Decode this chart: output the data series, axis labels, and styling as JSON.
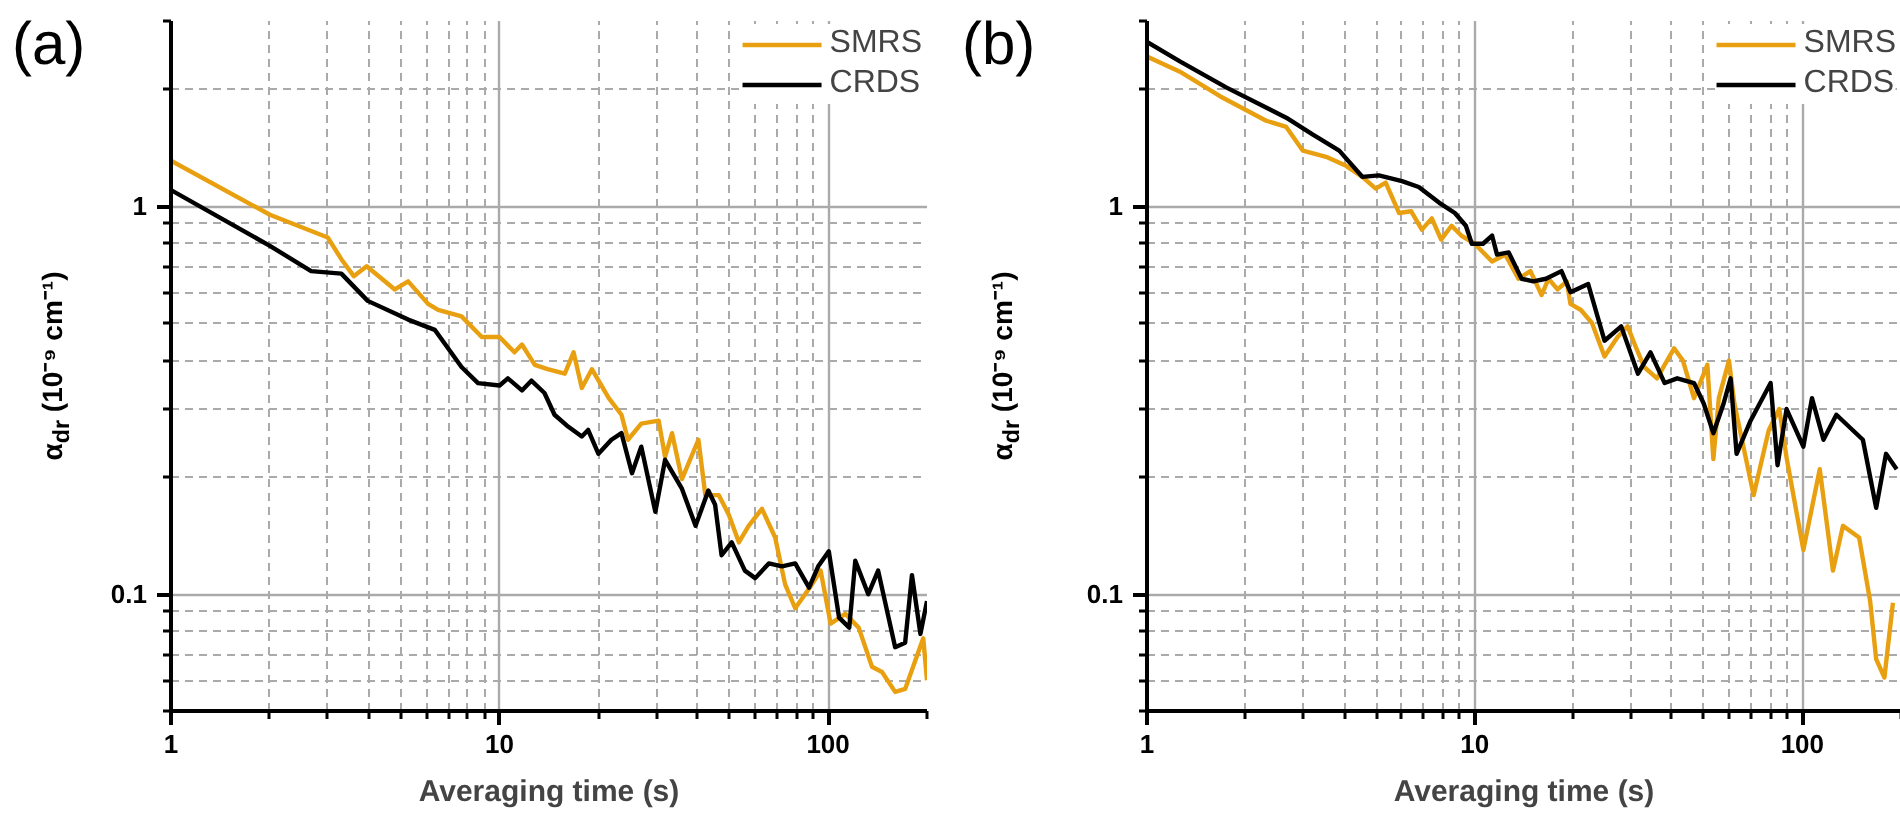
{
  "chart_data": [
    {
      "type": "line",
      "title": "(a)",
      "xlabel": "Averaging time (s)",
      "ylabel": "α$_{dr}$ (10⁻⁹ cm⁻¹)",
      "log": "xy",
      "grid": true,
      "legend": "top right",
      "xlim": [
        1,
        200
      ],
      "ylim": [
        0.05,
        3
      ],
      "xticks": [
        1,
        10,
        100
      ],
      "yticks": [
        0.1,
        1
      ],
      "series": [
        {
          "name": "SMRS",
          "color": "#e9a010",
          "x": [
            1,
            2,
            3,
            3.3,
            3.6,
            3.94,
            4.8,
            5.27,
            6.06,
            6.5,
            7.66,
            8.83,
            10,
            11.1,
            11.7,
            12.8,
            14,
            15.8,
            16.8,
            17.8,
            19.1,
            21.5,
            23.5,
            24.6,
            27,
            30.5,
            31.9,
            33.5,
            35.9,
            40.3,
            42.3,
            46.5,
            49.9,
            53.5,
            57.3,
            62.9,
            69,
            74,
            79.4,
            85.1,
            89.3,
            94.9,
            101.8,
            112.8,
            123.9,
            136,
            145.9,
            160,
            171.6,
            194.8,
            200
          ],
          "values": [
            1.31,
            0.95,
            0.83,
            0.73,
            0.66,
            0.7,
            0.61,
            0.64,
            0.56,
            0.54,
            0.52,
            0.46,
            0.46,
            0.42,
            0.44,
            0.39,
            0.38,
            0.37,
            0.42,
            0.34,
            0.38,
            0.32,
            0.29,
            0.25,
            0.275,
            0.28,
            0.226,
            0.26,
            0.198,
            0.25,
            0.18,
            0.18,
            0.16,
            0.136,
            0.15,
            0.166,
            0.14,
            0.106,
            0.092,
            0.1,
            0.106,
            0.115,
            0.084,
            0.089,
            0.082,
            0.065,
            0.063,
            0.056,
            0.057,
            0.077,
            0.06
          ]
        },
        {
          "name": "CRDS",
          "color": "#000000",
          "x": [
            1,
            2,
            2.67,
            3.3,
            3.97,
            5.27,
            6.35,
            7.66,
            8.6,
            10,
            10.6,
            11.7,
            12.5,
            13.7,
            14.7,
            16.2,
            17.8,
            18.6,
            20,
            21.9,
            23.5,
            25.3,
            27,
            29.8,
            31.9,
            35.9,
            39.5,
            43.2,
            45.3,
            47.4,
            50.9,
            55.8,
            60,
            66,
            72.4,
            79.4,
            87.5,
            93.3,
            100.5,
            108,
            116,
            121,
            132.5,
            142,
            160,
            171.6,
            180,
            191,
            200
          ],
          "values": [
            1.1,
            0.79,
            0.68,
            0.67,
            0.57,
            0.51,
            0.48,
            0.385,
            0.35,
            0.345,
            0.36,
            0.335,
            0.355,
            0.33,
            0.29,
            0.27,
            0.255,
            0.265,
            0.23,
            0.25,
            0.26,
            0.205,
            0.24,
            0.163,
            0.222,
            0.187,
            0.15,
            0.185,
            0.17,
            0.126,
            0.136,
            0.115,
            0.11,
            0.12,
            0.118,
            0.12,
            0.104,
            0.118,
            0.129,
            0.087,
            0.082,
            0.122,
            0.1,
            0.115,
            0.073,
            0.075,
            0.112,
            0.079,
            0.096
          ]
        }
      ]
    },
    {
      "type": "line",
      "title": "(b)",
      "xlabel": "Averaging time (s)",
      "ylabel": "α$_{dr}$ (10⁻⁹ cm⁻¹)",
      "log": "xy",
      "grid": true,
      "legend": "top right",
      "xlim": [
        1,
        200
      ],
      "ylim": [
        0.05,
        3
      ],
      "xticks": [
        1,
        10,
        100
      ],
      "yticks": [
        0.1,
        1
      ],
      "series": [
        {
          "name": "SMRS",
          "color": "#e9a010",
          "x": [
            1,
            1.26,
            1.67,
            2.31,
            2.66,
            2.99,
            3.52,
            4.05,
            4.54,
            4.99,
            5.35,
            5.88,
            6.4,
            6.9,
            7.4,
            7.9,
            8.5,
            9.1,
            10,
            11.3,
            12.4,
            13.6,
            14.8,
            16,
            16.8,
            17.9,
            19.1,
            19.6,
            21.1,
            22.8,
            24.9,
            27.3,
            29.3,
            30.8,
            32.9,
            36,
            40.6,
            43.2,
            46.7,
            51.3,
            53.5,
            55.6,
            59.7,
            62,
            71,
            79,
            85,
            89.5,
            100.7,
            113,
            124,
            133,
            149,
            161,
            168,
            178,
            189
          ],
          "values": [
            2.43,
            2.22,
            1.92,
            1.66,
            1.6,
            1.39,
            1.34,
            1.27,
            1.19,
            1.11,
            1.15,
            0.96,
            0.97,
            0.87,
            0.93,
            0.82,
            0.89,
            0.84,
            0.8,
            0.72,
            0.75,
            0.65,
            0.68,
            0.59,
            0.65,
            0.61,
            0.64,
            0.56,
            0.54,
            0.5,
            0.41,
            0.46,
            0.49,
            0.44,
            0.385,
            0.36,
            0.43,
            0.4,
            0.32,
            0.39,
            0.223,
            0.32,
            0.4,
            0.31,
            0.18,
            0.265,
            0.3,
            0.225,
            0.13,
            0.21,
            0.115,
            0.15,
            0.14,
            0.096,
            0.068,
            0.061,
            0.095
          ]
        },
        {
          "name": "CRDS",
          "color": "#000000",
          "x": [
            1,
            1.26,
            1.75,
            2.66,
            3.2,
            3.86,
            4.54,
            5.1,
            6,
            6.75,
            7.8,
            8.7,
            9.4,
            9.8,
            10.6,
            11.3,
            11.7,
            12.7,
            13.9,
            15.1,
            16.5,
            18.4,
            19.6,
            22.2,
            24.9,
            28,
            31.5,
            34.4,
            38,
            41.5,
            46.7,
            50,
            53.5,
            57.5,
            60.4,
            63,
            69.5,
            80,
            84,
            89.5,
            100.7,
            107,
            116,
            127,
            153,
            168,
            180,
            194
          ],
          "values": [
            2.65,
            2.36,
            2.02,
            1.69,
            1.53,
            1.39,
            1.19,
            1.2,
            1.16,
            1.12,
            1.02,
            0.96,
            0.89,
            0.8,
            0.8,
            0.84,
            0.75,
            0.76,
            0.65,
            0.64,
            0.65,
            0.68,
            0.6,
            0.63,
            0.45,
            0.49,
            0.37,
            0.42,
            0.35,
            0.36,
            0.35,
            0.31,
            0.26,
            0.31,
            0.36,
            0.23,
            0.28,
            0.35,
            0.215,
            0.3,
            0.24,
            0.32,
            0.25,
            0.29,
            0.25,
            0.167,
            0.23,
            0.21
          ]
        }
      ]
    }
  ]
}
